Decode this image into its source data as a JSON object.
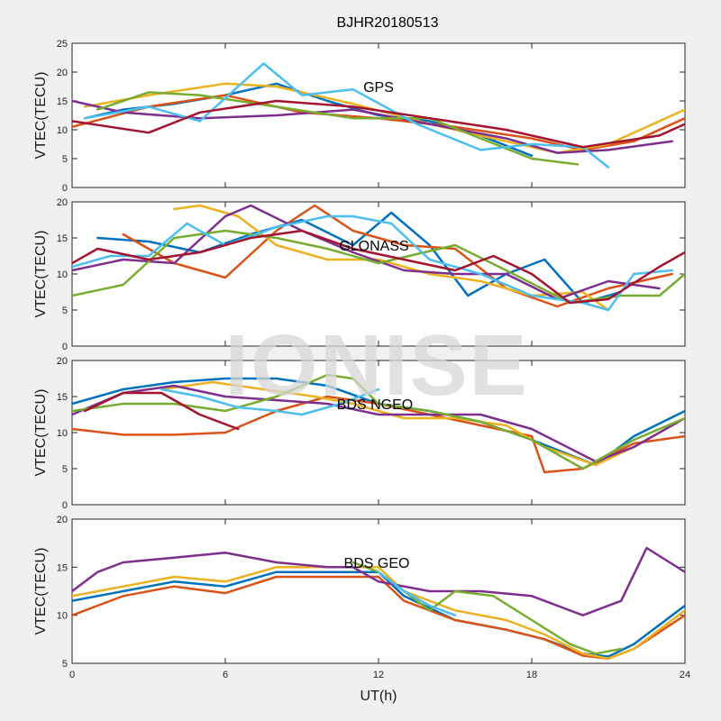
{
  "figure": {
    "title": "BJHR20180513",
    "xlabel": "UT(h)",
    "watermark": "IONISE"
  },
  "chart_data": [
    {
      "type": "line",
      "label": "GPS",
      "ylabel": "VTEC(TECU)",
      "xlim": [
        0,
        24
      ],
      "ylim": [
        0,
        25
      ],
      "xticks": [
        0,
        6,
        12,
        18,
        24
      ],
      "yticks": [
        0,
        5,
        10,
        15,
        20,
        25
      ],
      "grid": false,
      "series": [
        {
          "color": "#0072BD",
          "x": [
            0.5,
            2,
            4,
            6,
            8,
            10,
            12,
            14,
            16,
            18
          ],
          "y": [
            12,
            13.5,
            14.5,
            16,
            18,
            15,
            12.5,
            11.5,
            9,
            5.5
          ]
        },
        {
          "color": "#D95319",
          "x": [
            0,
            3,
            6,
            9,
            12,
            15,
            18,
            20,
            22,
            24
          ],
          "y": [
            10.5,
            14,
            16,
            13,
            12,
            10.5,
            8.5,
            6.5,
            8,
            12
          ]
        },
        {
          "color": "#EDB120",
          "x": [
            0.5,
            3,
            6,
            8,
            11,
            14,
            17,
            19,
            21,
            24
          ],
          "y": [
            14,
            16,
            18,
            17.5,
            14.5,
            11,
            8,
            6,
            7.5,
            13.5
          ]
        },
        {
          "color": "#7E2F8E",
          "x": [
            0,
            2,
            5,
            8,
            11,
            14,
            17,
            19,
            21,
            23.5
          ],
          "y": [
            15,
            13,
            12,
            12.5,
            13.5,
            11,
            8.5,
            6,
            6.5,
            8
          ]
        },
        {
          "color": "#77AC30",
          "x": [
            1,
            3,
            5,
            8,
            11,
            14,
            16,
            18,
            19.8
          ],
          "y": [
            13.5,
            16.5,
            16,
            14,
            12,
            12,
            8.5,
            5,
            4
          ]
        },
        {
          "color": "#4DBEEE",
          "x": [
            0.5,
            3,
            5,
            7.5,
            9,
            11,
            13.5,
            16,
            18,
            20,
            21
          ],
          "y": [
            12,
            14,
            11.5,
            21.5,
            16,
            17,
            11,
            6.5,
            7.5,
            7,
            3.5
          ]
        },
        {
          "color": "#A2142F",
          "x": [
            0,
            1.5,
            3,
            5,
            8,
            11,
            14,
            17,
            20,
            23,
            24
          ],
          "y": [
            11.5,
            10.5,
            9.5,
            13,
            15,
            14,
            12,
            10,
            7,
            9,
            11
          ]
        }
      ]
    },
    {
      "type": "line",
      "label": "GLONASS",
      "ylabel": "VTEC(TECU)",
      "xlim": [
        0,
        24
      ],
      "ylim": [
        0,
        20
      ],
      "xticks": [
        0,
        6,
        12,
        18,
        24
      ],
      "yticks": [
        0,
        5,
        10,
        15,
        20
      ],
      "grid": false,
      "series": [
        {
          "color": "#0072BD",
          "x": [
            1,
            3,
            5,
            7,
            9,
            11,
            12.5,
            14,
            15.5,
            17,
            18.5,
            20,
            21.5
          ],
          "y": [
            15,
            14.5,
            13,
            15.5,
            17.5,
            14,
            18.5,
            14,
            7,
            10,
            12,
            6,
            7.5
          ]
        },
        {
          "color": "#D95319",
          "x": [
            2,
            4,
            6,
            8,
            9.5,
            11,
            13,
            15,
            17,
            19,
            21,
            23.5
          ],
          "y": [
            15.5,
            11.5,
            9.5,
            16,
            19.5,
            16,
            14,
            13.5,
            8,
            5.5,
            8,
            10
          ]
        },
        {
          "color": "#EDB120",
          "x": [
            4,
            5,
            6.5,
            8,
            10,
            12,
            14,
            16,
            18,
            20,
            21
          ],
          "y": [
            19,
            19.5,
            18,
            14,
            12,
            12,
            10,
            9,
            7,
            7.5,
            5
          ]
        },
        {
          "color": "#7E2F8E",
          "x": [
            0,
            2,
            4,
            6,
            7,
            9,
            11,
            13,
            15,
            17,
            19,
            21,
            23
          ],
          "y": [
            10.5,
            12,
            11.5,
            18,
            19.5,
            16,
            13,
            10.5,
            10,
            10,
            6.5,
            9,
            8
          ]
        },
        {
          "color": "#77AC30",
          "x": [
            0,
            2,
            4,
            6,
            8,
            10,
            12,
            15,
            17,
            19.5,
            21.5,
            23,
            24
          ],
          "y": [
            7,
            8.5,
            15,
            16,
            15,
            13.5,
            11.5,
            14,
            10.5,
            6,
            7,
            7,
            10
          ]
        },
        {
          "color": "#4DBEEE",
          "x": [
            0,
            1.5,
            3,
            4.5,
            6,
            8,
            10,
            11,
            12.5,
            14,
            16,
            18,
            20,
            21,
            22,
            23.5
          ],
          "y": [
            11,
            12.5,
            12.5,
            17,
            14,
            16.5,
            18,
            18,
            17,
            12,
            10,
            7,
            6,
            5,
            10,
            10.5
          ]
        },
        {
          "color": "#A2142F",
          "x": [
            0,
            1,
            3,
            5,
            7,
            9,
            11,
            13,
            15,
            16.5,
            18,
            19.5,
            21,
            23,
            24
          ],
          "y": [
            11.5,
            13.5,
            12,
            13,
            15,
            16,
            13.5,
            12,
            10.5,
            12.5,
            10,
            6,
            6.5,
            11,
            13
          ]
        }
      ]
    },
    {
      "type": "line",
      "label": "BDS NGEO",
      "ylabel": "VTEC(TECU)",
      "xlim": [
        0,
        24
      ],
      "ylim": [
        0,
        20
      ],
      "xticks": [
        0,
        6,
        12,
        18,
        24
      ],
      "yticks": [
        0,
        5,
        10,
        15,
        20
      ],
      "grid": false,
      "series": [
        {
          "color": "#0072BD",
          "x": [
            0,
            2,
            4,
            6,
            8,
            10,
            12,
            14,
            16,
            18,
            20.5,
            22,
            24
          ],
          "y": [
            14,
            16,
            17,
            17.5,
            17.5,
            16.5,
            14,
            13,
            11.5,
            9,
            5.5,
            9.5,
            13
          ]
        },
        {
          "color": "#D95319",
          "x": [
            0,
            2,
            4,
            6,
            8,
            10,
            12,
            14,
            16,
            18,
            18.5,
            20,
            22,
            24
          ],
          "y": [
            10.5,
            9.7,
            9.7,
            10,
            13,
            15,
            14,
            12.5,
            11,
            9.5,
            4.5,
            5,
            8.5,
            9.5
          ]
        },
        {
          "color": "#EDB120",
          "x": [
            3.5,
            5.5,
            7.5,
            9.5,
            11,
            13,
            15,
            17,
            18.5,
            20.5,
            22,
            24
          ],
          "y": [
            16,
            17,
            16,
            15,
            14,
            12,
            12,
            11,
            8,
            5.5,
            8,
            12
          ]
        },
        {
          "color": "#7E2F8E",
          "x": [
            0,
            2,
            4,
            6,
            8,
            10,
            12,
            14,
            16,
            18,
            20.5,
            22,
            24
          ],
          "y": [
            12.5,
            15.5,
            16.5,
            15,
            14.5,
            14,
            12.5,
            12.5,
            12.5,
            10.5,
            6,
            8,
            12
          ]
        },
        {
          "color": "#77AC30",
          "x": [
            0,
            2,
            4,
            6,
            8,
            10,
            11,
            12,
            14,
            16,
            18,
            20,
            22,
            24
          ],
          "y": [
            13,
            14,
            14,
            13,
            15,
            18,
            17.5,
            14,
            13,
            11.5,
            9,
            5,
            9,
            12
          ]
        },
        {
          "color": "#4DBEEE",
          "x": [
            3.5,
            5,
            6.5,
            8,
            9,
            10.5,
            12
          ],
          "y": [
            16,
            15,
            13.5,
            13,
            12.5,
            14,
            16
          ]
        },
        {
          "color": "#A2142F",
          "x": [
            0.5,
            2,
            3.5,
            5,
            6.5
          ],
          "y": [
            13,
            15.5,
            15.5,
            12.5,
            10.5
          ]
        }
      ]
    },
    {
      "type": "line",
      "label": "BDS GEO",
      "ylabel": "VTEC(TECU)",
      "xlim": [
        0,
        24
      ],
      "ylim": [
        5,
        20
      ],
      "xticks": [
        0,
        6,
        12,
        18,
        24
      ],
      "yticks": [
        5,
        10,
        15,
        20
      ],
      "grid": false,
      "series": [
        {
          "color": "#0072BD",
          "x": [
            0,
            2,
            4,
            6,
            8,
            10,
            12,
            13,
            15,
            17,
            18.5,
            20,
            21,
            22,
            24
          ],
          "y": [
            11.5,
            12.5,
            13.5,
            13,
            14.5,
            14.5,
            14.5,
            12,
            9.5,
            8.5,
            7.5,
            6,
            5.7,
            7,
            11
          ]
        },
        {
          "color": "#D95319",
          "x": [
            0,
            2,
            4,
            6,
            8,
            10,
            12,
            13,
            15,
            17,
            18.5,
            20,
            21,
            22,
            24
          ],
          "y": [
            10,
            12,
            13,
            12.3,
            14,
            14,
            14,
            11.5,
            9.5,
            8.5,
            7.5,
            5.8,
            5.5,
            6.5,
            10
          ]
        },
        {
          "color": "#EDB120",
          "x": [
            0,
            2,
            4,
            6,
            8,
            10,
            12,
            13,
            15,
            17,
            18.5,
            20,
            21,
            22,
            24
          ],
          "y": [
            12,
            13,
            14,
            13.5,
            15,
            15,
            15,
            12.5,
            10.5,
            9.5,
            8,
            6,
            5.5,
            6.5,
            10.5
          ]
        },
        {
          "color": "#7E2F8E",
          "x": [
            0,
            1,
            2,
            4,
            6,
            8,
            10,
            11,
            12,
            14,
            16,
            18,
            20,
            21.5,
            22.5,
            24
          ],
          "y": [
            12.5,
            14.5,
            15.5,
            16,
            16.5,
            15.5,
            15,
            15,
            13.5,
            12.5,
            12.5,
            12,
            10,
            11.5,
            17,
            14.5
          ]
        },
        {
          "color": "#77AC30",
          "x": [
            11,
            12,
            13,
            14,
            15,
            16.5,
            18,
            19.5,
            20.5,
            21.5
          ],
          "y": [
            15.5,
            14.5,
            12.5,
            10.5,
            12.5,
            12,
            9.5,
            7,
            6,
            6.5
          ]
        },
        {
          "color": "#4DBEEE",
          "x": [
            12,
            13,
            14,
            15
          ],
          "y": [
            14.5,
            12.5,
            11,
            10
          ]
        }
      ]
    }
  ]
}
